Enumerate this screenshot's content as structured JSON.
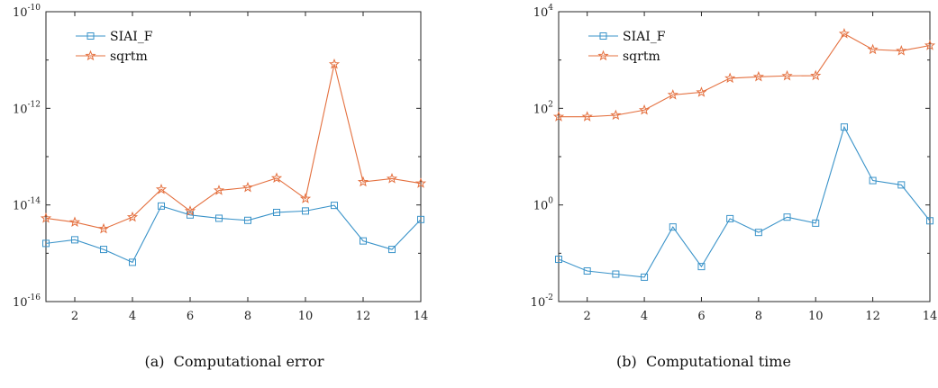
{
  "captions": {
    "a": {
      "tag": "(a)",
      "text": "Computational error"
    },
    "b": {
      "tag": "(b)",
      "text": "Computational time"
    }
  },
  "colors": {
    "siai_f": "#3a93c9",
    "sqrtm": "#e4703f",
    "axis": "#262626"
  },
  "chart_data": [
    {
      "type": "line",
      "id": "error",
      "title": "",
      "xlabel": "",
      "ylabel": "",
      "yscale": "log",
      "xlim": [
        1,
        14
      ],
      "ylim": [
        1e-16,
        1e-10
      ],
      "x": [
        1,
        2,
        3,
        4,
        5,
        6,
        7,
        8,
        9,
        10,
        11,
        12,
        13,
        14
      ],
      "x_ticks": [
        2,
        4,
        6,
        8,
        10,
        12,
        14
      ],
      "y_ticks": [
        {
          "base": "10",
          "exp": "-16",
          "value": 1e-16
        },
        {
          "base": "10",
          "exp": "-14",
          "value": 1e-14
        },
        {
          "base": "10",
          "exp": "-12",
          "value": 1e-12
        },
        {
          "base": "10",
          "exp": "-10",
          "value": 1e-10
        }
      ],
      "legend": {
        "position": "top-left"
      },
      "grid": false,
      "series": [
        {
          "name": "SIAI_F",
          "marker": "square",
          "color": "#3a93c9",
          "values": [
            1.6e-15,
            1.9e-15,
            1.2e-15,
            6.5e-16,
            9.5e-15,
            6.2e-15,
            5.3e-15,
            4.8e-15,
            7e-15,
            7.5e-15,
            9.8e-15,
            1.8e-15,
            1.2e-15,
            5e-15
          ]
        },
        {
          "name": "sqrtm",
          "marker": "star",
          "color": "#e4703f",
          "values": [
            5.3e-15,
            4.4e-15,
            3.2e-15,
            5.6e-15,
            2.1e-14,
            7.5e-15,
            2e-14,
            2.3e-14,
            3.6e-14,
            1.35e-14,
            8.2e-12,
            3e-14,
            3.5e-14,
            2.8e-14
          ]
        }
      ]
    },
    {
      "type": "line",
      "id": "time",
      "title": "",
      "xlabel": "",
      "ylabel": "",
      "yscale": "log",
      "xlim": [
        1,
        14
      ],
      "ylim": [
        0.01,
        10000
      ],
      "x": [
        1,
        2,
        3,
        4,
        5,
        6,
        7,
        8,
        9,
        10,
        11,
        12,
        13,
        14
      ],
      "x_ticks": [
        2,
        4,
        6,
        8,
        10,
        12,
        14
      ],
      "y_ticks": [
        {
          "base": "10",
          "exp": "-2",
          "value": 0.01
        },
        {
          "base": "10",
          "exp": "0",
          "value": 1
        },
        {
          "base": "10",
          "exp": "2",
          "value": 100
        },
        {
          "base": "10",
          "exp": "4",
          "value": 10000
        }
      ],
      "legend": {
        "position": "top-left"
      },
      "grid": false,
      "series": [
        {
          "name": "SIAI_F",
          "marker": "square",
          "color": "#3a93c9",
          "values": [
            0.075,
            0.043,
            0.037,
            0.032,
            0.35,
            0.053,
            0.52,
            0.27,
            0.56,
            0.42,
            41,
            3.2,
            2.6,
            0.47
          ]
        },
        {
          "name": "sqrtm",
          "marker": "star",
          "color": "#e4703f",
          "values": [
            67,
            67,
            72,
            92,
            190,
            215,
            420,
            450,
            470,
            475,
            3500,
            1650,
            1550,
            2000
          ]
        }
      ]
    }
  ]
}
